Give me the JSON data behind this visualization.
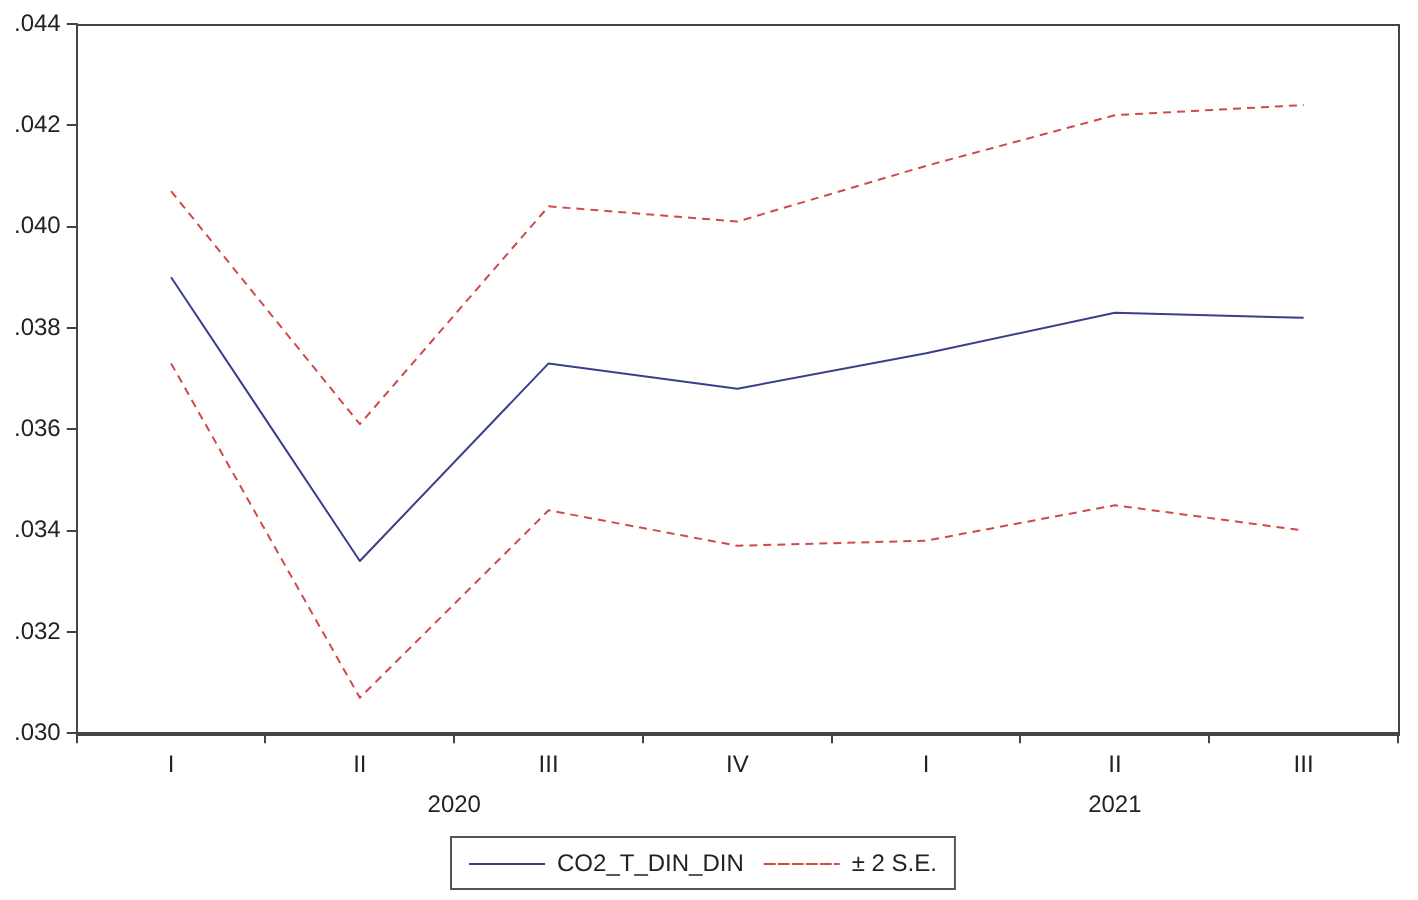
{
  "chart_data": {
    "type": "line",
    "categories": [
      "I",
      "II",
      "III",
      "IV",
      "I",
      "II",
      "III"
    ],
    "series": [
      {
        "name": "CO2_T_DIN_DIN",
        "color": "#3a3f8c",
        "line_style": "solid",
        "values": [
          0.039,
          0.0334,
          0.0373,
          0.0368,
          0.0375,
          0.0383,
          0.0382
        ]
      },
      {
        "name": "± 2 S.E.",
        "color": "#d04a4a",
        "line_style": "dashed",
        "values": [
          0.0407,
          0.0361,
          0.0404,
          0.0401,
          0.0412,
          0.0422,
          0.0424
        ]
      },
      {
        "color": "#d04a4a",
        "line_style": "dashed",
        "values": [
          0.0373,
          0.0307,
          0.0344,
          0.0337,
          0.0338,
          0.0345,
          0.034
        ]
      }
    ],
    "ylim": [
      0.03,
      0.044
    ],
    "yticks": [
      {
        "value": 0.03,
        "label": ".030"
      },
      {
        "value": 0.032,
        "label": ".032"
      },
      {
        "value": 0.034,
        "label": ".034"
      },
      {
        "value": 0.036,
        "label": ".036"
      },
      {
        "value": 0.038,
        "label": ".038"
      },
      {
        "value": 0.04,
        "label": ".040"
      },
      {
        "value": 0.042,
        "label": ".042"
      },
      {
        "value": 0.044,
        "label": ".044"
      }
    ],
    "annotations": [
      "2020",
      "2021"
    ],
    "grid": false,
    "legend": "bottom",
    "marker": "none"
  }
}
